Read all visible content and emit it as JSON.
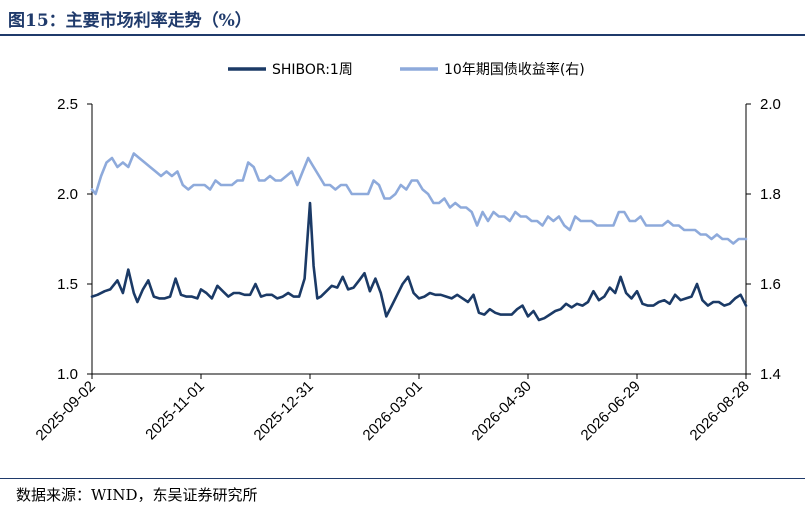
{
  "figure": {
    "title": "图15：主要市场利率走势（%）",
    "source": "数据来源：WIND，东吴证券研究所"
  },
  "colors": {
    "shibor": "#1b3a66",
    "bond": "#8eaadb",
    "title": "#1f3a6b"
  },
  "chart_data": {
    "type": "line",
    "title": "",
    "legend_position": "top",
    "grid": false,
    "x_tick_labels": [
      "2025-09-02",
      "2025-11-01",
      "2025-12-31",
      "2026-03-01",
      "2026-04-30",
      "2026-06-29",
      "2026-08-28"
    ],
    "y_left": {
      "ylim": [
        1.0,
        2.5
      ],
      "ticks": [
        "1.0",
        "1.5",
        "2.0",
        "2.5"
      ]
    },
    "y_right": {
      "ylim": [
        1.4,
        2.0
      ],
      "ticks": [
        "1.4",
        "1.6",
        "1.8",
        "2.0"
      ]
    },
    "series": [
      {
        "name": "SHIBOR:1周",
        "axis": "left",
        "x": [
          "2025-09-02",
          "2025-09-05",
          "2025-09-09",
          "2025-09-12",
          "2025-09-16",
          "2025-09-19",
          "2025-09-22",
          "2025-09-25",
          "2025-09-27",
          "2025-09-30",
          "2025-10-03",
          "2025-10-06",
          "2025-10-09",
          "2025-10-12",
          "2025-10-15",
          "2025-10-18",
          "2025-10-21",
          "2025-10-24",
          "2025-10-27",
          "2025-10-30",
          "2025-11-01",
          "2025-11-04",
          "2025-11-07",
          "2025-11-10",
          "2025-11-13",
          "2025-11-16",
          "2025-11-19",
          "2025-11-22",
          "2025-11-25",
          "2025-11-28",
          "2025-12-01",
          "2025-12-04",
          "2025-12-07",
          "2025-12-10",
          "2025-12-13",
          "2025-12-16",
          "2025-12-19",
          "2025-12-22",
          "2025-12-25",
          "2025-12-28",
          "2025-12-31",
          "2026-01-02",
          "2026-01-04",
          "2026-01-06",
          "2026-01-09",
          "2026-01-12",
          "2026-01-15",
          "2026-01-18",
          "2026-01-21",
          "2026-01-24",
          "2026-01-27",
          "2026-01-30",
          "2026-02-02",
          "2026-02-05",
          "2026-02-08",
          "2026-02-11",
          "2026-02-14",
          "2026-02-17",
          "2026-02-20",
          "2026-02-23",
          "2026-02-26",
          "2026-03-01",
          "2026-03-04",
          "2026-03-07",
          "2026-03-10",
          "2026-03-13",
          "2026-03-16",
          "2026-03-19",
          "2026-03-22",
          "2026-03-25",
          "2026-03-28",
          "2026-03-31",
          "2026-04-03",
          "2026-04-06",
          "2026-04-09",
          "2026-04-12",
          "2026-04-15",
          "2026-04-18",
          "2026-04-21",
          "2026-04-24",
          "2026-04-27",
          "2026-04-30",
          "2026-05-03",
          "2026-05-06",
          "2026-05-09",
          "2026-05-12",
          "2026-05-15",
          "2026-05-18",
          "2026-05-21",
          "2026-05-24",
          "2026-05-27",
          "2026-05-30",
          "2026-06-02",
          "2026-06-05",
          "2026-06-08",
          "2026-06-11",
          "2026-06-14",
          "2026-06-17",
          "2026-06-20",
          "2026-06-23",
          "2026-06-26",
          "2026-06-29",
          "2026-07-02",
          "2026-07-05",
          "2026-07-08",
          "2026-07-11",
          "2026-07-14",
          "2026-07-17",
          "2026-07-20",
          "2026-07-23",
          "2026-07-26",
          "2026-07-29",
          "2026-08-01",
          "2026-08-04",
          "2026-08-07",
          "2026-08-10",
          "2026-08-13",
          "2026-08-16",
          "2026-08-19",
          "2026-08-22",
          "2026-08-25",
          "2026-08-28"
        ],
        "values": [
          1.43,
          1.44,
          1.46,
          1.47,
          1.52,
          1.45,
          1.58,
          1.45,
          1.4,
          1.47,
          1.52,
          1.43,
          1.42,
          1.42,
          1.43,
          1.53,
          1.44,
          1.43,
          1.43,
          1.42,
          1.47,
          1.45,
          1.42,
          1.49,
          1.46,
          1.43,
          1.45,
          1.45,
          1.44,
          1.44,
          1.5,
          1.43,
          1.44,
          1.44,
          1.42,
          1.43,
          1.45,
          1.43,
          1.43,
          1.53,
          1.95,
          1.6,
          1.42,
          1.43,
          1.46,
          1.49,
          1.48,
          1.54,
          1.47,
          1.48,
          1.52,
          1.56,
          1.46,
          1.53,
          1.45,
          1.32,
          1.38,
          1.44,
          1.5,
          1.54,
          1.45,
          1.42,
          1.43,
          1.45,
          1.44,
          1.44,
          1.43,
          1.42,
          1.44,
          1.42,
          1.4,
          1.44,
          1.34,
          1.33,
          1.36,
          1.34,
          1.33,
          1.33,
          1.33,
          1.36,
          1.38,
          1.32,
          1.35,
          1.3,
          1.31,
          1.33,
          1.35,
          1.36,
          1.39,
          1.37,
          1.39,
          1.38,
          1.4,
          1.46,
          1.41,
          1.43,
          1.48,
          1.45,
          1.54,
          1.45,
          1.42,
          1.46,
          1.39,
          1.38,
          1.38,
          1.4,
          1.41,
          1.39,
          1.44,
          1.41,
          1.42,
          1.43,
          1.5,
          1.41,
          1.38,
          1.4,
          1.4,
          1.38,
          1.39,
          1.42,
          1.44,
          1.38
        ]
      },
      {
        "name": "10年期国债收益率(右)",
        "axis": "right",
        "x": [
          "2025-09-02",
          "2025-09-04",
          "2025-09-07",
          "2025-09-10",
          "2025-09-13",
          "2025-09-16",
          "2025-09-19",
          "2025-09-22",
          "2025-09-25",
          "2025-09-28",
          "2025-10-01",
          "2025-10-04",
          "2025-10-07",
          "2025-10-10",
          "2025-10-13",
          "2025-10-16",
          "2025-10-19",
          "2025-10-22",
          "2025-10-25",
          "2025-10-28",
          "2025-10-31",
          "2025-11-03",
          "2025-11-06",
          "2025-11-09",
          "2025-11-12",
          "2025-11-15",
          "2025-11-18",
          "2025-11-21",
          "2025-11-24",
          "2025-11-27",
          "2025-11-30",
          "2025-12-03",
          "2025-12-06",
          "2025-12-09",
          "2025-12-12",
          "2025-12-15",
          "2025-12-18",
          "2025-12-21",
          "2025-12-24",
          "2025-12-27",
          "2025-12-30",
          "2026-01-02",
          "2026-01-05",
          "2026-01-08",
          "2026-01-11",
          "2026-01-14",
          "2026-01-17",
          "2026-01-20",
          "2026-01-23",
          "2026-01-26",
          "2026-01-29",
          "2026-02-01",
          "2026-02-04",
          "2026-02-07",
          "2026-02-10",
          "2026-02-13",
          "2026-02-16",
          "2026-02-19",
          "2026-02-22",
          "2026-02-25",
          "2026-02-28",
          "2026-03-03",
          "2026-03-06",
          "2026-03-09",
          "2026-03-12",
          "2026-03-15",
          "2026-03-18",
          "2026-03-21",
          "2026-03-24",
          "2026-03-27",
          "2026-03-30",
          "2026-04-02",
          "2026-04-05",
          "2026-04-08",
          "2026-04-11",
          "2026-04-14",
          "2026-04-17",
          "2026-04-20",
          "2026-04-23",
          "2026-04-26",
          "2026-04-29",
          "2026-05-02",
          "2026-05-05",
          "2026-05-08",
          "2026-05-11",
          "2026-05-14",
          "2026-05-17",
          "2026-05-20",
          "2026-05-23",
          "2026-05-26",
          "2026-05-29",
          "2026-06-01",
          "2026-06-04",
          "2026-06-07",
          "2026-06-10",
          "2026-06-13",
          "2026-06-16",
          "2026-06-19",
          "2026-06-22",
          "2026-06-25",
          "2026-06-28",
          "2026-07-01",
          "2026-07-04",
          "2026-07-07",
          "2026-07-10",
          "2026-07-13",
          "2026-07-16",
          "2026-07-19",
          "2026-07-22",
          "2026-07-25",
          "2026-07-28",
          "2026-07-31",
          "2026-08-03",
          "2026-08-06",
          "2026-08-09",
          "2026-08-12",
          "2026-08-15",
          "2026-08-18",
          "2026-08-21",
          "2026-08-24",
          "2026-08-28"
        ],
        "values": [
          1.81,
          1.8,
          1.84,
          1.87,
          1.88,
          1.86,
          1.87,
          1.86,
          1.89,
          1.88,
          1.87,
          1.86,
          1.85,
          1.84,
          1.85,
          1.84,
          1.85,
          1.82,
          1.81,
          1.82,
          1.82,
          1.82,
          1.81,
          1.83,
          1.82,
          1.82,
          1.82,
          1.83,
          1.83,
          1.87,
          1.86,
          1.83,
          1.83,
          1.84,
          1.83,
          1.83,
          1.84,
          1.85,
          1.82,
          1.85,
          1.88,
          1.86,
          1.84,
          1.82,
          1.82,
          1.81,
          1.82,
          1.82,
          1.8,
          1.8,
          1.8,
          1.8,
          1.83,
          1.82,
          1.79,
          1.79,
          1.8,
          1.82,
          1.81,
          1.83,
          1.83,
          1.81,
          1.8,
          1.78,
          1.78,
          1.79,
          1.77,
          1.78,
          1.77,
          1.77,
          1.76,
          1.73,
          1.76,
          1.74,
          1.76,
          1.75,
          1.75,
          1.74,
          1.76,
          1.75,
          1.75,
          1.74,
          1.74,
          1.73,
          1.75,
          1.74,
          1.75,
          1.73,
          1.72,
          1.75,
          1.74,
          1.74,
          1.74,
          1.73,
          1.73,
          1.73,
          1.73,
          1.76,
          1.76,
          1.74,
          1.74,
          1.75,
          1.73,
          1.73,
          1.73,
          1.73,
          1.74,
          1.73,
          1.73,
          1.72,
          1.72,
          1.72,
          1.71,
          1.71,
          1.7,
          1.71,
          1.7,
          1.7,
          1.69,
          1.7,
          1.7
        ]
      }
    ]
  }
}
